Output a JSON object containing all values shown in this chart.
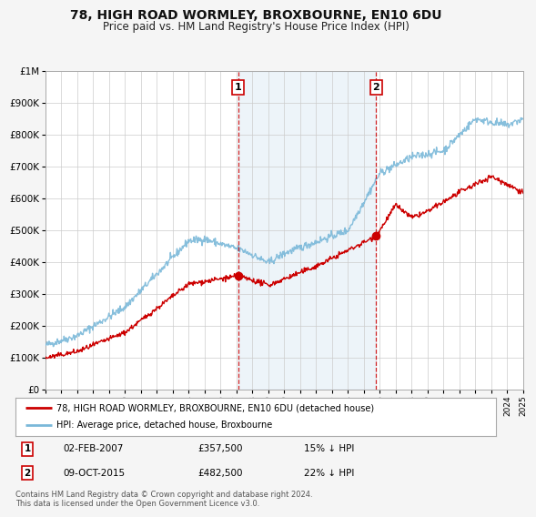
{
  "title": "78, HIGH ROAD WORMLEY, BROXBOURNE, EN10 6DU",
  "subtitle": "Price paid vs. HM Land Registry's House Price Index (HPI)",
  "ylim": [
    0,
    1000000
  ],
  "xlim_start": 1995,
  "xlim_end": 2025,
  "yticks": [
    0,
    100000,
    200000,
    300000,
    400000,
    500000,
    600000,
    700000,
    800000,
    900000,
    1000000
  ],
  "ytick_labels": [
    "£0",
    "£100K",
    "£200K",
    "£300K",
    "£400K",
    "£500K",
    "£600K",
    "£700K",
    "£800K",
    "£900K",
    "£1M"
  ],
  "hpi_color": "#7ab8d9",
  "price_color": "#cc0000",
  "marker_color": "#cc0000",
  "vline_color": "#cc0000",
  "shading_color": "#cce0f0",
  "event1_x": 2007.09,
  "event1_y": 357500,
  "event1_label": "1",
  "event1_date": "02-FEB-2007",
  "event1_price": "£357,500",
  "event1_note": "15% ↓ HPI",
  "event2_x": 2015.77,
  "event2_y": 482500,
  "event2_label": "2",
  "event2_date": "09-OCT-2015",
  "event2_price": "£482,500",
  "event2_note": "22% ↓ HPI",
  "legend_line1": "78, HIGH ROAD WORMLEY, BROXBOURNE, EN10 6DU (detached house)",
  "legend_line2": "HPI: Average price, detached house, Broxbourne",
  "footer": "Contains HM Land Registry data © Crown copyright and database right 2024.\nThis data is licensed under the Open Government Licence v3.0.",
  "bg_color": "#f5f5f5",
  "plot_bg_color": "#ffffff",
  "grid_color": "#cccccc",
  "title_fontsize": 10,
  "subtitle_fontsize": 8.5
}
